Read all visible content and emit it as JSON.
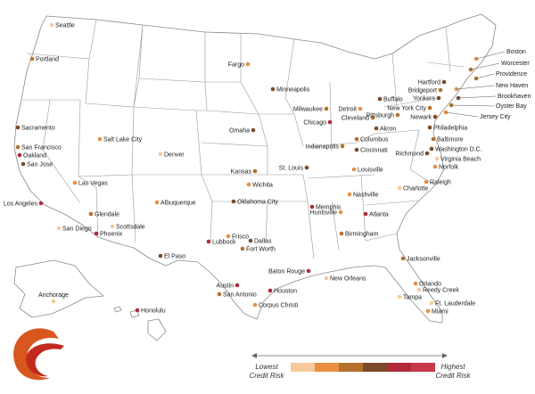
{
  "legend": {
    "low_label_1": "Lowest",
    "low_label_2": "Credit Risk",
    "high_label_1": "Highest",
    "high_label_2": "Credit Risk",
    "colors": [
      "#f6c99b",
      "#e88f3f",
      "#b4702c",
      "#7b4a28",
      "#b02a3a",
      "#c8374a"
    ]
  },
  "logo": {
    "colors": [
      "#d8571f",
      "#c22a1e"
    ]
  },
  "cities": [
    {
      "name": "Seattle",
      "risk": 0
    },
    {
      "name": "Portland",
      "risk": 2
    },
    {
      "name": "Sacramento",
      "risk": 3
    },
    {
      "name": "San Francisco",
      "risk": 2
    },
    {
      "name": "Oakland",
      "risk": 4
    },
    {
      "name": "San Jose",
      "risk": 3
    },
    {
      "name": "Los Angeles",
      "risk": 4
    },
    {
      "name": "San Diego",
      "risk": 0
    },
    {
      "name": "Las Vegas",
      "risk": 1
    },
    {
      "name": "Glendale",
      "risk": 2
    },
    {
      "name": "Phoenix",
      "risk": 4
    },
    {
      "name": "Scottsdale",
      "risk": 0
    },
    {
      "name": "Salt Lake City",
      "risk": 1
    },
    {
      "name": "Denver",
      "risk": 0
    },
    {
      "name": "Albuquerque",
      "risk": 1
    },
    {
      "name": "El Paso",
      "risk": 3
    },
    {
      "name": "Lubbock",
      "risk": 4
    },
    {
      "name": "Frisco",
      "risk": 1
    },
    {
      "name": "Dallas",
      "risk": 3
    },
    {
      "name": "Fort Worth",
      "risk": 2
    },
    {
      "name": "Austin",
      "risk": 4
    },
    {
      "name": "San Antonio",
      "risk": 2
    },
    {
      "name": "Houston",
      "risk": 4
    },
    {
      "name": "Corpus Christi",
      "risk": 1
    },
    {
      "name": "Oklahoma City",
      "risk": 3
    },
    {
      "name": "Wichita",
      "risk": 1
    },
    {
      "name": "Kansas",
      "risk": 2
    },
    {
      "name": "Omaha",
      "risk": 3
    },
    {
      "name": "Fargo",
      "risk": 1
    },
    {
      "name": "Minneapolis",
      "risk": 3
    },
    {
      "name": "Milwaukee",
      "risk": 2
    },
    {
      "name": "Chicago",
      "risk": 4
    },
    {
      "name": "St. Louis",
      "risk": 3
    },
    {
      "name": "Indianapolis",
      "risk": 2
    },
    {
      "name": "Louisville",
      "risk": 1
    },
    {
      "name": "Nashville",
      "risk": 1
    },
    {
      "name": "Memphis",
      "risk": 4
    },
    {
      "name": "Huntsville",
      "risk": 1
    },
    {
      "name": "Atlanta",
      "risk": 4
    },
    {
      "name": "Birmingham",
      "risk": 2
    },
    {
      "name": "Baton Rouge",
      "risk": 4
    },
    {
      "name": "New Orleans",
      "risk": 0
    },
    {
      "name": "Jacksonville",
      "risk": 2
    },
    {
      "name": "Orlando",
      "risk": 1
    },
    {
      "name": "Reedy Creek",
      "risk": 0
    },
    {
      "name": "Tampa",
      "risk": 0
    },
    {
      "name": "Ft. Lauderdale",
      "risk": 0
    },
    {
      "name": "Miami",
      "risk": 1
    },
    {
      "name": "Charlotte",
      "risk": 0
    },
    {
      "name": "Raleigh",
      "risk": 1
    },
    {
      "name": "Richmond",
      "risk": 3
    },
    {
      "name": "Virginia Beach",
      "risk": 0
    },
    {
      "name": "Norfolk",
      "risk": 1
    },
    {
      "name": "Washington D.C.",
      "risk": 3
    },
    {
      "name": "Baltimore",
      "risk": 2
    },
    {
      "name": "Philadelphia",
      "risk": 3
    },
    {
      "name": "Columbus",
      "risk": 2
    },
    {
      "name": "Cincinnati",
      "risk": 3
    },
    {
      "name": "Detroit",
      "risk": 1
    },
    {
      "name": "Cleveland",
      "risk": 2
    },
    {
      "name": "Akron",
      "risk": 3
    },
    {
      "name": "Pittsburgh",
      "risk": 2
    },
    {
      "name": "Buffalo",
      "risk": 3
    },
    {
      "name": "Newark",
      "risk": 3
    },
    {
      "name": "New York City",
      "risk": 2
    },
    {
      "name": "Yonkers",
      "risk": 3
    },
    {
      "name": "Bridgeport",
      "risk": 2
    },
    {
      "name": "Hartford",
      "risk": 3
    },
    {
      "name": "Boston",
      "risk": 1
    },
    {
      "name": "Worcester",
      "risk": 2
    },
    {
      "name": "Providence",
      "risk": 2
    },
    {
      "name": "New Haven",
      "risk": 1
    },
    {
      "name": "Brookhaven",
      "risk": 3
    },
    {
      "name": "Oyster Bay",
      "risk": 2
    },
    {
      "name": "Jersey City",
      "risk": 1
    },
    {
      "name": "Anchorage",
      "risk": 0
    },
    {
      "name": "Honolulu",
      "risk": 4
    }
  ]
}
